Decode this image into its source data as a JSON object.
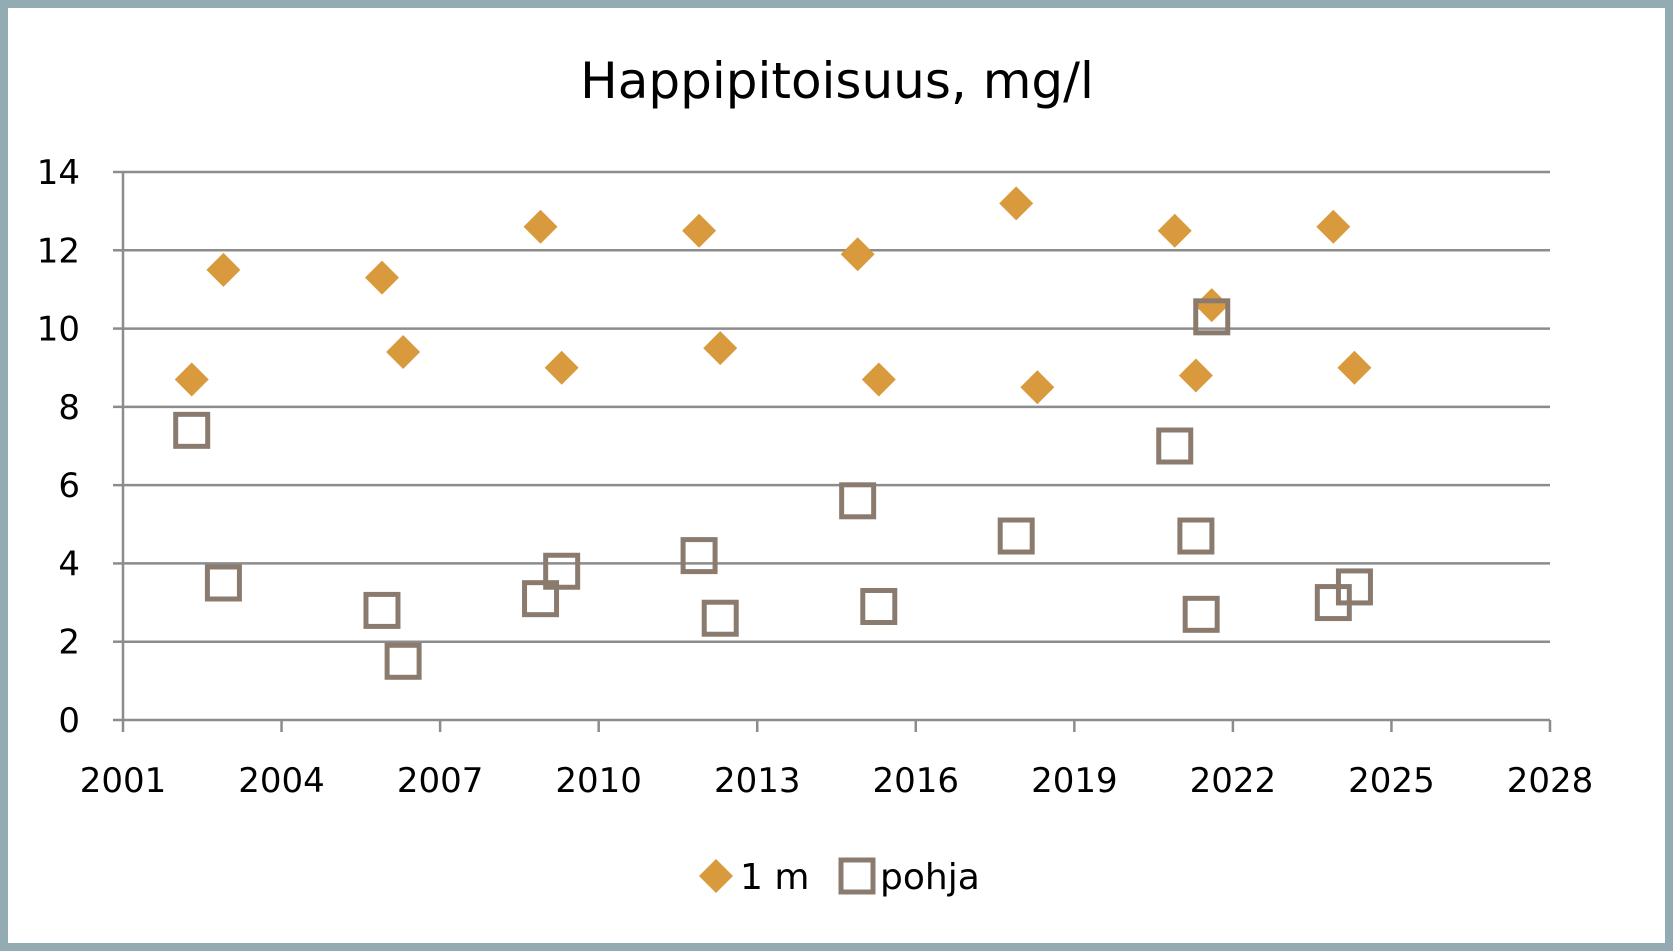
{
  "chart_data": {
    "type": "scatter",
    "title": "Happipitoisuus, mg/l",
    "xlabel": "",
    "ylabel": "",
    "xlim": [
      2001,
      2028
    ],
    "ylim": [
      0,
      14
    ],
    "x_ticks": [
      "2001",
      "2004",
      "2007",
      "2010",
      "2013",
      "2016",
      "2019",
      "2022",
      "2025",
      "2028"
    ],
    "y_ticks": [
      "0",
      "2",
      "4",
      "6",
      "8",
      "10",
      "12",
      "14"
    ],
    "grid": "horizontal",
    "legend_position": "bottom",
    "series": [
      {
        "name": "1 m",
        "marker": "diamond",
        "color": "#d99a3e",
        "points": [
          [
            2002.3,
            8.7
          ],
          [
            2002.9,
            11.5
          ],
          [
            2005.9,
            11.3
          ],
          [
            2006.3,
            9.4
          ],
          [
            2008.9,
            12.6
          ],
          [
            2009.3,
            9.0
          ],
          [
            2011.9,
            12.5
          ],
          [
            2012.3,
            9.5
          ],
          [
            2014.9,
            11.9
          ],
          [
            2015.3,
            8.7
          ],
          [
            2017.9,
            13.2
          ],
          [
            2018.3,
            8.5
          ],
          [
            2020.9,
            12.5
          ],
          [
            2021.3,
            8.8
          ],
          [
            2021.6,
            10.6
          ],
          [
            2023.9,
            12.6
          ],
          [
            2024.3,
            9.0
          ]
        ]
      },
      {
        "name": "pohja",
        "marker": "square-open",
        "color": "#8b7b6f",
        "points": [
          [
            2002.3,
            7.4
          ],
          [
            2002.9,
            3.5
          ],
          [
            2005.9,
            2.8
          ],
          [
            2006.3,
            1.5
          ],
          [
            2008.9,
            3.1
          ],
          [
            2009.3,
            3.8
          ],
          [
            2011.9,
            4.2
          ],
          [
            2012.3,
            2.6
          ],
          [
            2014.9,
            5.6
          ],
          [
            2015.3,
            2.9
          ],
          [
            2017.9,
            4.7
          ],
          [
            2020.9,
            7.0
          ],
          [
            2021.3,
            4.7
          ],
          [
            2021.4,
            2.7
          ],
          [
            2021.6,
            10.3
          ],
          [
            2023.9,
            3.0
          ],
          [
            2024.3,
            3.4
          ]
        ]
      }
    ]
  }
}
